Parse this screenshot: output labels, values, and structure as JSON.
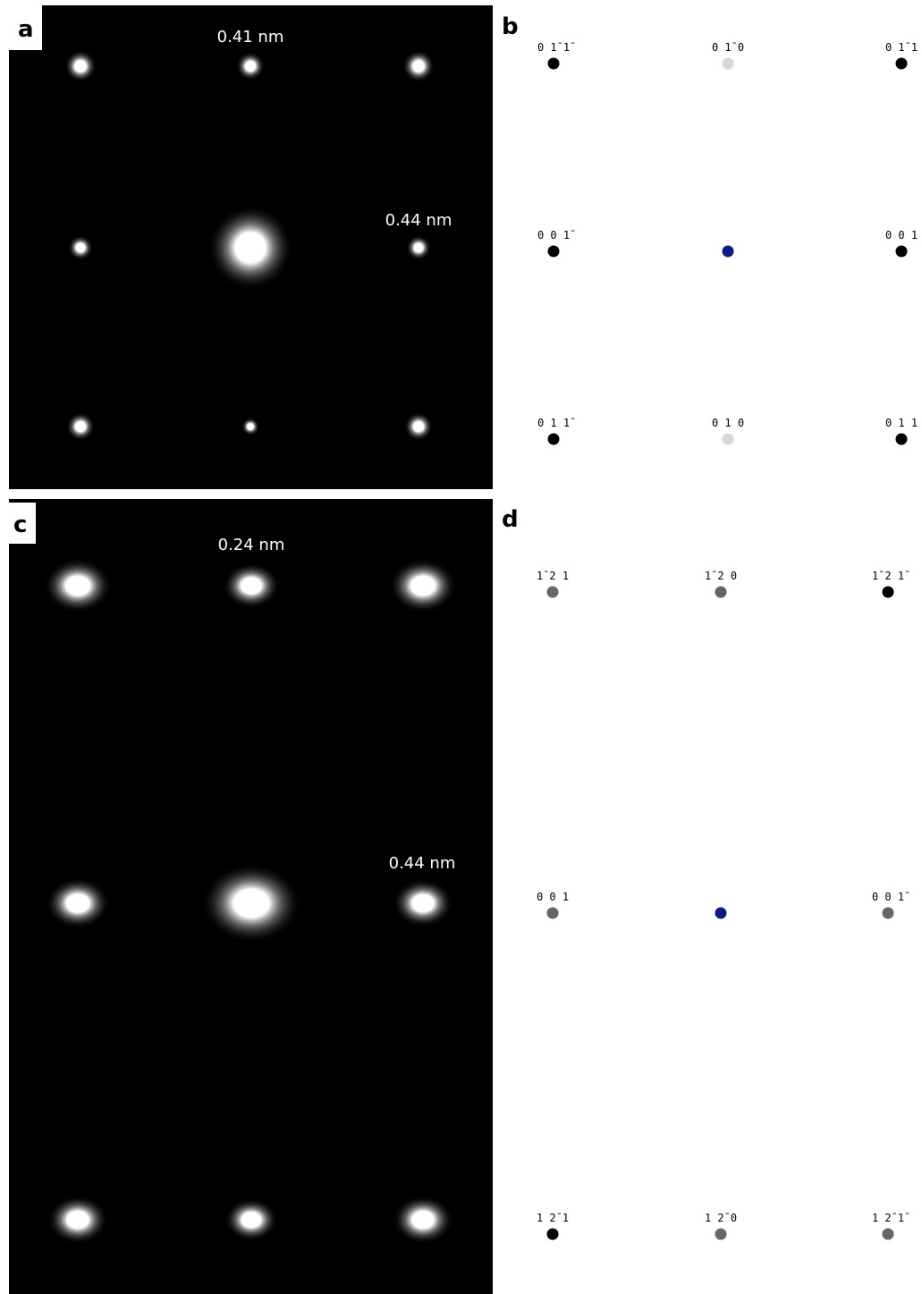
{
  "panel_a": {
    "label": "a",
    "annotations": [
      "0.41 nm",
      "0.44 nm"
    ]
  },
  "panel_b": {
    "label": "b",
    "spots": [
      {
        "label": "0 1̄ 1̄",
        "color": "#000000"
      },
      {
        "label": "0 1̄ 0",
        "color": "#d8d8d8"
      },
      {
        "label": "0 1̄ 1",
        "color": "#000000"
      },
      {
        "label": "0 0 1̄",
        "color": "#000000"
      },
      {
        "color": "#0a1a8c"
      },
      {
        "label": "0 0 1",
        "color": "#000000"
      },
      {
        "label": "0 1 1̄",
        "color": "#000000"
      },
      {
        "label": "0 1 0",
        "color": "#d8d8d8"
      },
      {
        "label": "0 1 1",
        "color": "#000000"
      }
    ]
  },
  "panel_c": {
    "label": "c",
    "annotations": [
      "0.24 nm",
      "0.44 nm"
    ]
  },
  "panel_d": {
    "label": "d",
    "spots": [
      {
        "label": "1̄ 2 1",
        "color": "#666666"
      },
      {
        "label": "1̄ 2 0",
        "color": "#666666"
      },
      {
        "label": "1̄ 2 1̄",
        "color": "#000000"
      },
      {
        "label": "0 0 1",
        "color": "#666666"
      },
      {
        "color": "#0a1a8c"
      },
      {
        "label": "0 0 1̄",
        "color": "#666666"
      },
      {
        "label": "1 2̄ 1",
        "color": "#000000"
      },
      {
        "label": "1 2̄ 0",
        "color": "#666666"
      },
      {
        "label": "1 2̄ 1̄",
        "color": "#666666"
      }
    ]
  }
}
